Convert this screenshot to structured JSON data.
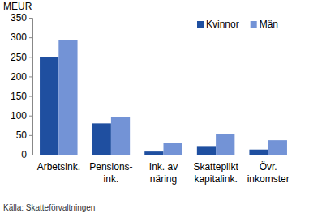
{
  "chart_data": {
    "type": "bar",
    "y_label": "MEUR",
    "source": "Källa: Skatteförvaltningen",
    "categories": [
      "Arbetsink.",
      "Pensions-\nink.",
      "Ink. av\nnäring",
      "Skatteplikt\nkapitalink.",
      "Övr.\ninkomster"
    ],
    "series": [
      {
        "name": "Kvinnor",
        "color": "#1f4fa0",
        "values": [
          250,
          80,
          8,
          22,
          13
        ]
      },
      {
        "name": "Män",
        "color": "#7393d6",
        "values": [
          292,
          97,
          30,
          52,
          37
        ]
      }
    ],
    "ylim": [
      0,
      350
    ],
    "yticks": [
      0,
      50,
      100,
      150,
      200,
      250,
      300,
      350
    ],
    "grid": false,
    "legend": "upper right"
  }
}
